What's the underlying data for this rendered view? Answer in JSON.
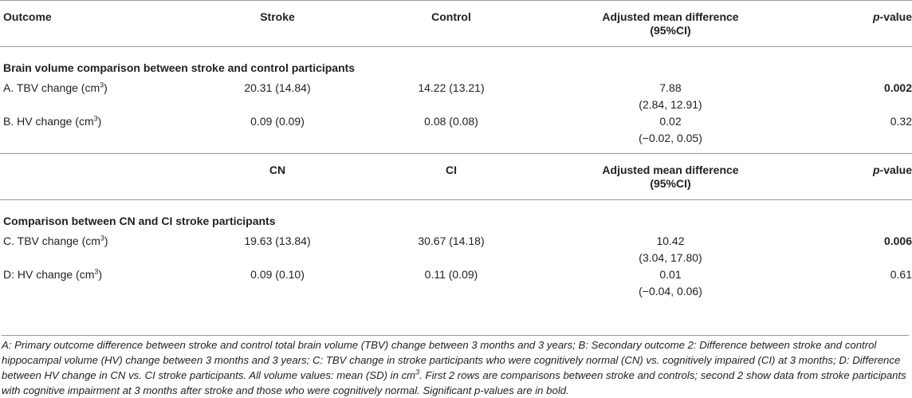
{
  "header1": {
    "outcome": "Outcome",
    "col2": "Stroke",
    "col3": "Control",
    "col4_line1": "Adjusted mean difference",
    "col4_line2": "(95%CI)",
    "pval_p": "p",
    "pval_rest": "-value"
  },
  "section1": {
    "title": "Brain volume comparison between stroke and control participants"
  },
  "rowA": {
    "label": "A. TBV change (cm",
    "sup": "3",
    "close": ")",
    "c2": "20.31 (14.84)",
    "c3": "14.22 (13.21)",
    "diff": "7.88",
    "ci": "(2.84, 12.91)",
    "p": "0.002",
    "p_bold": true
  },
  "rowB": {
    "label": "B. HV change (cm",
    "sup": "3",
    "close": ")",
    "c2": "0.09 (0.09)",
    "c3": "0.08 (0.08)",
    "diff": "0.02",
    "ci": "(−0.02, 0.05)",
    "p": "0.32"
  },
  "header2": {
    "col2": "CN",
    "col3": "CI",
    "col4_line1": "Adjusted mean difference",
    "col4_line2": "(95%CI)",
    "pval_p": "p",
    "pval_rest": "-value"
  },
  "section2": {
    "title": "Comparison between CN and CI stroke participants"
  },
  "rowC": {
    "label": "C. TBV change (cm",
    "sup": "3",
    "close": ")",
    "c2": "19.63 (13.84)",
    "c3": "30.67 (14.18)",
    "diff": "10.42",
    "ci": "(3.04, 17.80)",
    "p": "0.006",
    "p_bold": true
  },
  "rowD": {
    "label": "D: HV change (cm",
    "sup": "3",
    "close": ")",
    "c2": "0.09 (0.10)",
    "c3": "0.11 (0.09)",
    "diff": "0.01",
    "ci": "(−0.04, 0.06)",
    "p": "0.61"
  },
  "footnote": {
    "text_before": "A: Primary outcome difference between stroke and control total brain volume (TBV) change between 3 months and 3 years; B: Secondary outcome 2: Difference between stroke and control hippocampal volume (HV) change between 3 months and 3 years; C: TBV change in stroke participants who were cognitively normal (CN) vs. cognitively impaired (CI) at 3 months; D: Difference between HV change in CN vs. CI stroke participants. All volume values: mean (SD) in cm",
    "sup": "3",
    "text_after": ". First 2 rows are comparisons between stroke and controls; second 2 show data from stroke participants with cognitive impairment at 3 months after stroke and those who were cognitively normal. Significant p-values are in bold."
  }
}
